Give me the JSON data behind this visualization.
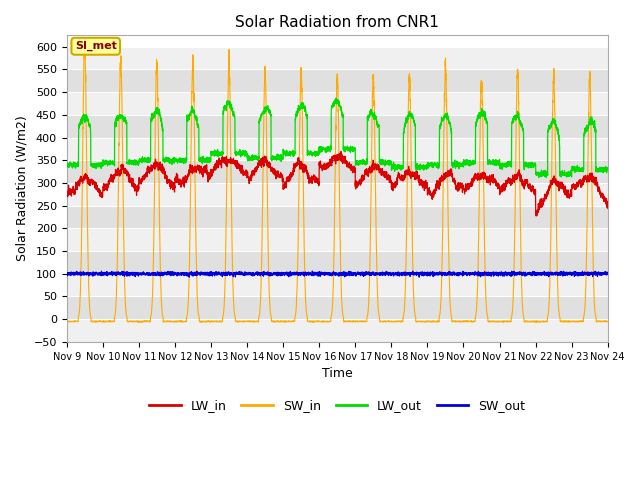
{
  "title": "Solar Radiation from CNR1",
  "xlabel": "Time",
  "ylabel": "Solar Radiation (W/m2)",
  "ylim": [
    -50,
    625
  ],
  "yticks": [
    -50,
    0,
    50,
    100,
    150,
    200,
    250,
    300,
    350,
    400,
    450,
    500,
    550,
    600
  ],
  "xstart": 9,
  "xend": 24,
  "xtick_labels": [
    "Nov 9",
    "Nov 10",
    "Nov 11",
    "Nov 12",
    "Nov 13",
    "Nov 14",
    "Nov 15",
    "Nov 16",
    "Nov 17",
    "Nov 18",
    "Nov 19",
    "Nov 20",
    "Nov 21",
    "Nov 22",
    "Nov 23",
    "Nov 24"
  ],
  "colors": {
    "LW_in": "#dd0000",
    "SW_in": "#ffaa00",
    "LW_out": "#00dd00",
    "SW_out": "#0000dd",
    "bg_light": "#f0f0f0",
    "bg_dark": "#e0e0e0",
    "annotation_bg": "#ffff99",
    "annotation_border": "#ccaa00"
  },
  "annotation_text": "SI_met",
  "legend_entries": [
    "LW_in",
    "SW_in",
    "LW_out",
    "SW_out"
  ],
  "grid_color": "#ffffff",
  "num_days": 15,
  "sw_peaks": [
    600,
    570,
    560,
    560,
    560,
    545,
    545,
    535,
    535,
    530,
    555,
    525,
    550,
    530,
    530
  ],
  "lw_in_day_base": [
    270,
    285,
    295,
    295,
    315,
    305,
    295,
    320,
    295,
    285,
    275,
    280,
    275,
    255,
    270
  ],
  "lw_out_day_base": [
    370,
    375,
    380,
    380,
    395,
    385,
    395,
    405,
    375,
    365,
    370,
    375,
    370,
    350,
    360
  ]
}
